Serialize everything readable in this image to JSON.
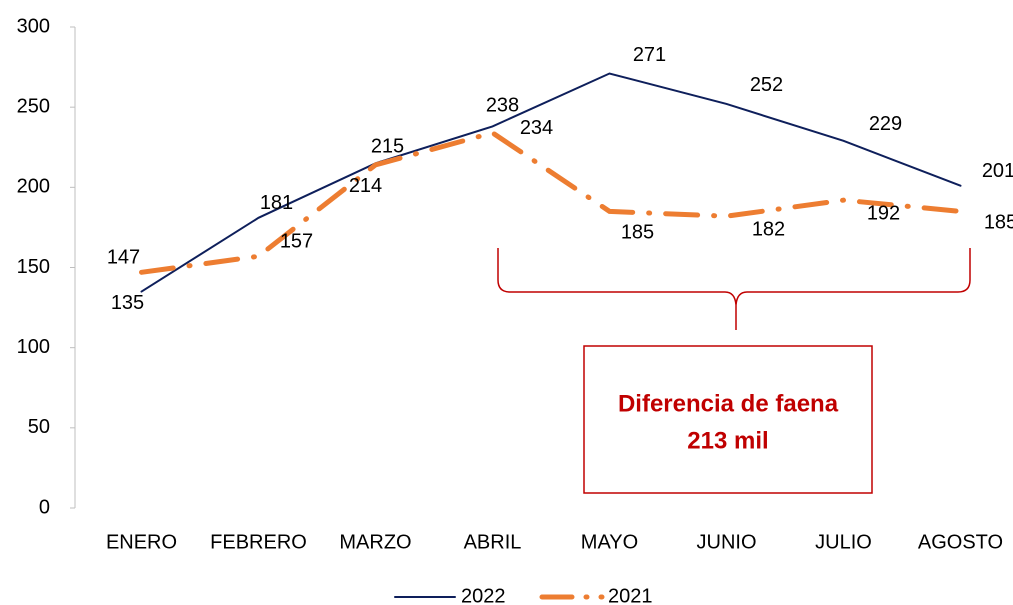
{
  "chart_data": {
    "type": "line",
    "categories": [
      "ENERO",
      "FEBRERO",
      "MARZO",
      "ABRIL",
      "MAYO",
      "JUNIO",
      "JULIO",
      "AGOSTO"
    ],
    "series": [
      {
        "name": "2022",
        "color": "#0e1f5b",
        "values": [
          135,
          181,
          215,
          238,
          271,
          252,
          229,
          201
        ]
      },
      {
        "name": "2021",
        "color": "#ed7d31",
        "values": [
          147,
          157,
          214,
          234,
          185,
          182,
          192,
          185
        ]
      }
    ],
    "ylim": [
      0,
      300
    ],
    "yticks": [
      0,
      50,
      100,
      150,
      200,
      250,
      300
    ],
    "annotation": [
      "Diferencia  de faena",
      "213 mil"
    ]
  }
}
